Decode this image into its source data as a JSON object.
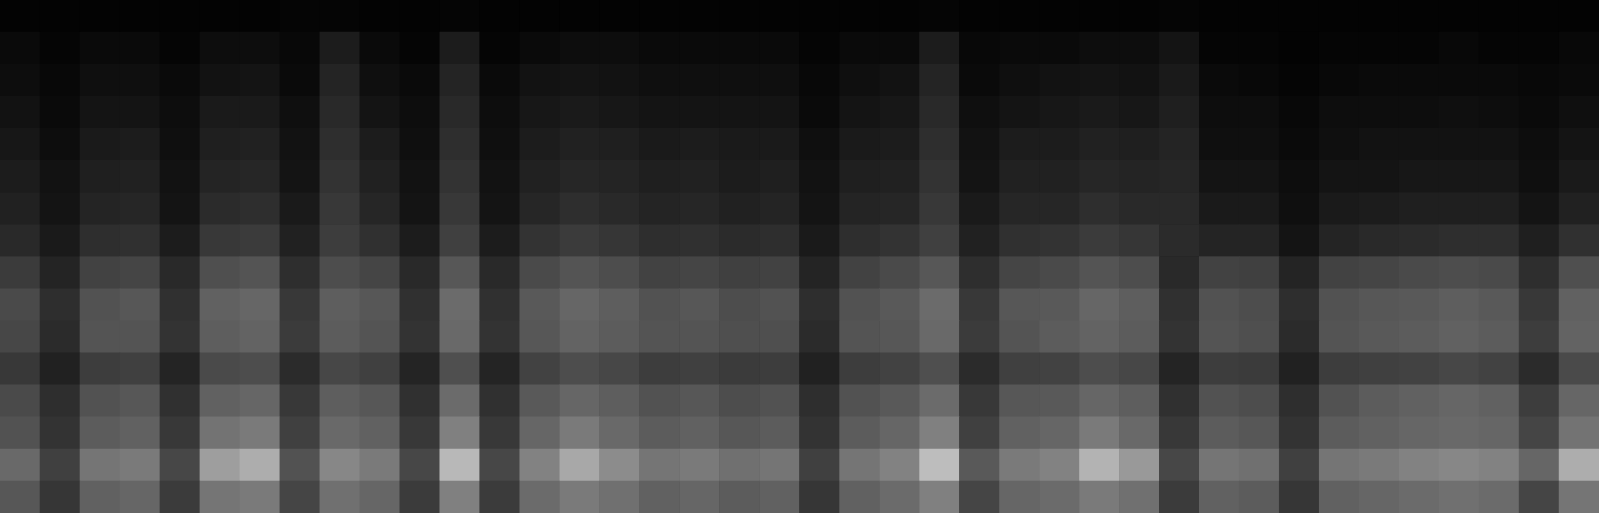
{
  "chart_data": {
    "type": "heatmap",
    "tick_labels": false,
    "grid": false,
    "zlim": [
      0,
      100
    ],
    "cells": [
      [
        1,
        1,
        1,
        1,
        1,
        1,
        1,
        2,
        2,
        1,
        1,
        2,
        1,
        1,
        1,
        1,
        1,
        1,
        1,
        1,
        1,
        1,
        1,
        2,
        1,
        1,
        1,
        1,
        1,
        2,
        1,
        1,
        1,
        1,
        1,
        1,
        1,
        1,
        1,
        1
      ],
      [
        4,
        2,
        4,
        4,
        2,
        5,
        5,
        3,
        11,
        4,
        2,
        11,
        2,
        4,
        5,
        5,
        4,
        4,
        4,
        4,
        2,
        4,
        4,
        11,
        3,
        4,
        4,
        5,
        5,
        8,
        2,
        2,
        1,
        2,
        2,
        2,
        3,
        2,
        2,
        3
      ],
      [
        5,
        3,
        6,
        6,
        4,
        7,
        8,
        4,
        14,
        6,
        4,
        14,
        4,
        7,
        8,
        7,
        6,
        6,
        6,
        6,
        3,
        6,
        7,
        14,
        4,
        6,
        7,
        8,
        7,
        10,
        4,
        3,
        2,
        3,
        4,
        4,
        4,
        4,
        3,
        4
      ],
      [
        7,
        4,
        8,
        8,
        5,
        10,
        10,
        6,
        16,
        8,
        5,
        16,
        5,
        9,
        10,
        9,
        8,
        8,
        8,
        8,
        4,
        8,
        9,
        16,
        6,
        8,
        9,
        10,
        9,
        12,
        5,
        5,
        3,
        5,
        5,
        5,
        6,
        5,
        4,
        6
      ],
      [
        9,
        5,
        10,
        11,
        6,
        12,
        13,
        7,
        18,
        11,
        6,
        18,
        6,
        11,
        13,
        12,
        10,
        11,
        10,
        10,
        6,
        10,
        11,
        18,
        7,
        11,
        11,
        13,
        12,
        14,
        6,
        6,
        4,
        6,
        7,
        7,
        7,
        7,
        5,
        8
      ],
      [
        11,
        7,
        12,
        13,
        7,
        14,
        15,
        8,
        20,
        13,
        7,
        20,
        7,
        13,
        15,
        14,
        12,
        13,
        11,
        12,
        7,
        12,
        13,
        20,
        8,
        13,
        13,
        15,
        14,
        15,
        8,
        8,
        5,
        8,
        8,
        9,
        9,
        9,
        6,
        10
      ],
      [
        13,
        8,
        14,
        15,
        8,
        17,
        18,
        10,
        22,
        15,
        8,
        22,
        8,
        15,
        18,
        16,
        14,
        15,
        13,
        14,
        8,
        14,
        15,
        22,
        10,
        15,
        15,
        18,
        16,
        16,
        10,
        10,
        6,
        10,
        11,
        12,
        12,
        12,
        8,
        13
      ],
      [
        16,
        10,
        18,
        19,
        11,
        22,
        23,
        13,
        24,
        19,
        11,
        25,
        11,
        20,
        23,
        21,
        18,
        19,
        17,
        18,
        10,
        18,
        20,
        25,
        13,
        19,
        20,
        23,
        21,
        17,
        14,
        14,
        8,
        14,
        16,
        17,
        18,
        18,
        12,
        19
      ],
      [
        23,
        14,
        26,
        27,
        16,
        31,
        33,
        18,
        30,
        27,
        16,
        34,
        16,
        29,
        33,
        30,
        26,
        27,
        25,
        26,
        14,
        26,
        29,
        34,
        18,
        27,
        29,
        33,
        30,
        16,
        26,
        25,
        14,
        26,
        27,
        29,
        30,
        29,
        18,
        31
      ],
      [
        29,
        18,
        32,
        34,
        19,
        38,
        40,
        22,
        37,
        34,
        19,
        42,
        19,
        35,
        40,
        37,
        32,
        34,
        30,
        32,
        18,
        32,
        35,
        42,
        22,
        34,
        35,
        40,
        37,
        19,
        32,
        30,
        18,
        32,
        34,
        35,
        37,
        35,
        22,
        38
      ],
      [
        28,
        17,
        33,
        33,
        20,
        37,
        39,
        23,
        36,
        33,
        20,
        41,
        20,
        34,
        39,
        36,
        33,
        33,
        31,
        31,
        17,
        33,
        34,
        41,
        23,
        33,
        36,
        39,
        36,
        20,
        33,
        31,
        17,
        33,
        35,
        36,
        38,
        36,
        24,
        39
      ],
      [
        22,
        13,
        24,
        25,
        14,
        29,
        30,
        17,
        28,
        25,
        14,
        31,
        14,
        26,
        30,
        28,
        24,
        25,
        23,
        24,
        13,
        24,
        26,
        31,
        17,
        25,
        26,
        30,
        28,
        14,
        24,
        23,
        13,
        24,
        25,
        26,
        28,
        26,
        17,
        29
      ],
      [
        29,
        18,
        32,
        34,
        19,
        38,
        40,
        22,
        37,
        34,
        19,
        42,
        19,
        35,
        40,
        37,
        32,
        34,
        30,
        32,
        18,
        32,
        35,
        42,
        22,
        34,
        35,
        40,
        37,
        19,
        32,
        30,
        18,
        32,
        36,
        38,
        40,
        38,
        24,
        40
      ],
      [
        32,
        20,
        36,
        38,
        22,
        45,
        48,
        25,
        41,
        38,
        22,
        50,
        22,
        40,
        48,
        41,
        36,
        38,
        34,
        36,
        20,
        36,
        40,
        50,
        25,
        38,
        40,
        48,
        41,
        22,
        36,
        34,
        20,
        36,
        38,
        40,
        41,
        40,
        27,
        45
      ],
      [
        41,
        25,
        46,
        48,
        28,
        62,
        68,
        32,
        53,
        48,
        28,
        72,
        28,
        51,
        66,
        55,
        46,
        48,
        44,
        46,
        25,
        46,
        51,
        74,
        35,
        48,
        51,
        70,
        60,
        28,
        46,
        44,
        25,
        46,
        48,
        51,
        53,
        51,
        40,
        68
      ],
      [
        34,
        21,
        38,
        40,
        23,
        46,
        48,
        27,
        44,
        40,
        23,
        50,
        23,
        42,
        48,
        44,
        38,
        40,
        36,
        38,
        21,
        38,
        42,
        50,
        27,
        40,
        42,
        48,
        44,
        23,
        38,
        36,
        21,
        38,
        40,
        42,
        44,
        42,
        27,
        46
      ]
    ]
  }
}
